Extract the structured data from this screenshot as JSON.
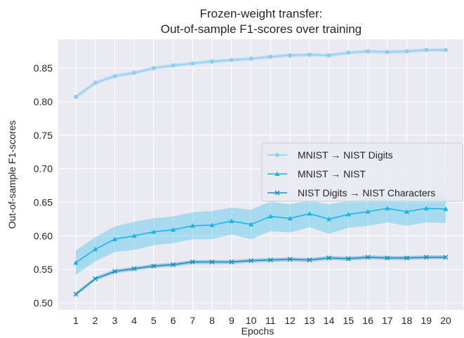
{
  "chart_data": {
    "type": "line",
    "title_lines": [
      "Frozen-weight transfer:",
      "Out-of-sample F1-scores over training"
    ],
    "xlabel": "Epochs",
    "ylabel": "Out-of-sample F1-scores",
    "x": [
      1,
      2,
      3,
      4,
      5,
      6,
      7,
      8,
      9,
      10,
      11,
      12,
      13,
      14,
      15,
      16,
      17,
      18,
      19,
      20
    ],
    "xticks": [
      "1",
      "2",
      "3",
      "4",
      "5",
      "6",
      "7",
      "8",
      "9",
      "10",
      "11",
      "12",
      "13",
      "14",
      "15",
      "16",
      "17",
      "18",
      "19",
      "20"
    ],
    "xlim": [
      0.1,
      20.9
    ],
    "ylim": [
      0.4895,
      0.893
    ],
    "yticks": [
      "0.50",
      "0.55",
      "0.60",
      "0.65",
      "0.70",
      "0.75",
      "0.80",
      "0.85"
    ],
    "yticks_values": [
      0.5,
      0.55,
      0.6,
      0.65,
      0.7,
      0.75,
      0.8,
      0.85
    ],
    "background": "#eaeaf2",
    "grid": true,
    "legend_position": "center-right",
    "series": [
      {
        "name": "MNIST → NIST Digits",
        "color": "#89cff0",
        "marker": "circle",
        "values": [
          0.807,
          0.828,
          0.838,
          0.843,
          0.85,
          0.854,
          0.857,
          0.86,
          0.862,
          0.864,
          0.867,
          0.869,
          0.87,
          0.869,
          0.873,
          0.875,
          0.874,
          0.875,
          0.877,
          0.877
        ],
        "band_half_width": [
          0.0035,
          0.003,
          0.003,
          0.003,
          0.003,
          0.003,
          0.003,
          0.003,
          0.003,
          0.003,
          0.003,
          0.003,
          0.003,
          0.003,
          0.003,
          0.003,
          0.003,
          0.003,
          0.003,
          0.003
        ]
      },
      {
        "name": "MNIST → NIST",
        "color": "#1ab6e8",
        "marker": "triangle",
        "values": [
          0.56,
          0.58,
          0.595,
          0.6,
          0.606,
          0.609,
          0.615,
          0.616,
          0.622,
          0.617,
          0.629,
          0.626,
          0.633,
          0.625,
          0.632,
          0.636,
          0.641,
          0.636,
          0.641,
          0.64
        ],
        "band_half_width": [
          0.018,
          0.018,
          0.019,
          0.021,
          0.02,
          0.02,
          0.02,
          0.021,
          0.02,
          0.022,
          0.022,
          0.021,
          0.02,
          0.022,
          0.02,
          0.021,
          0.021,
          0.021,
          0.021,
          0.021
        ]
      },
      {
        "name": "NIST Digits → NIST Characters",
        "color": "#1a8fc4",
        "marker": "x",
        "values": [
          0.513,
          0.536,
          0.547,
          0.551,
          0.555,
          0.557,
          0.561,
          0.561,
          0.561,
          0.563,
          0.564,
          0.565,
          0.564,
          0.567,
          0.566,
          0.568,
          0.567,
          0.567,
          0.568,
          0.568
        ],
        "band_half_width": [
          0.003,
          0.003,
          0.003,
          0.003,
          0.003,
          0.003,
          0.003,
          0.003,
          0.003,
          0.003,
          0.003,
          0.003,
          0.003,
          0.003,
          0.003,
          0.003,
          0.003,
          0.003,
          0.003,
          0.003
        ]
      }
    ]
  }
}
